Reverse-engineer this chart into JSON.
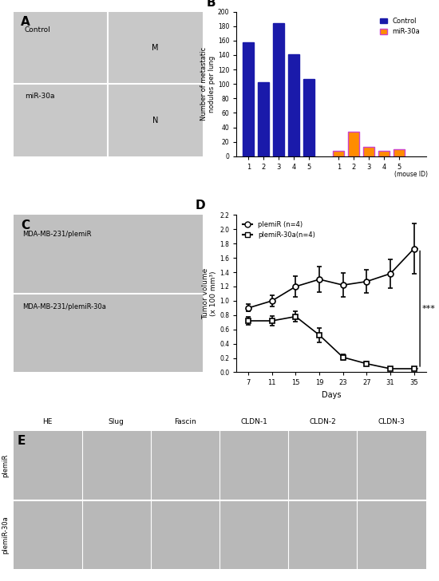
{
  "panel_B": {
    "control_values": [
      158,
      102,
      184,
      141,
      107
    ],
    "mir30a_values": [
      8,
      34,
      13,
      8,
      10
    ],
    "control_color": "#1a1aaa",
    "mir30a_color": "#ff8c00",
    "mir30a_edge_color": "#cc44cc",
    "ylabel": "Number of metastatic\nnodules per lung",
    "yticks": [
      0,
      20,
      40,
      60,
      80,
      100,
      120,
      140,
      160,
      180,
      200
    ],
    "ylim": [
      0,
      200
    ],
    "xlabel_note": "(mouse ID)",
    "xtick_labels": [
      "1",
      "2",
      "3",
      "4",
      "5",
      "1",
      "2",
      "3",
      "4",
      "5"
    ],
    "panel_label": "B"
  },
  "panel_D": {
    "days": [
      7,
      11,
      15,
      19,
      23,
      27,
      31,
      35
    ],
    "plemiR_mean": [
      0.9,
      1.0,
      1.2,
      1.3,
      1.22,
      1.27,
      1.38,
      1.73
    ],
    "plemiR_err": [
      0.05,
      0.08,
      0.15,
      0.18,
      0.17,
      0.16,
      0.2,
      0.35
    ],
    "plemiR30a_mean": [
      0.72,
      0.72,
      0.78,
      0.52,
      0.21,
      0.12,
      0.05,
      0.05
    ],
    "plemiR30a_err": [
      0.06,
      0.07,
      0.07,
      0.1,
      0.04,
      0.03,
      0.02,
      0.02
    ],
    "ylabel": "Tumor volume\n(x 100 mm³)",
    "xlabel": "Days",
    "ylim": [
      0,
      2.2
    ],
    "yticks": [
      0,
      0.2,
      0.4,
      0.6,
      0.8,
      1.0,
      1.2,
      1.4,
      1.6,
      1.8,
      2.0,
      2.2
    ],
    "xticks": [
      7,
      11,
      15,
      19,
      23,
      27,
      31,
      35
    ],
    "legend_plemiR": "plemiR (n=4)",
    "legend_plemiR30a": "plemiR-30a(n=4)",
    "significance": "***",
    "panel_label": "D",
    "line_color": "#000000"
  },
  "panel_E_cols": [
    "HE",
    "Slug",
    "Fascin",
    "CLDN-1",
    "CLDN-2",
    "CLDN-3"
  ],
  "panel_E_rows": [
    "plemiR",
    "plemiR-30a"
  ]
}
